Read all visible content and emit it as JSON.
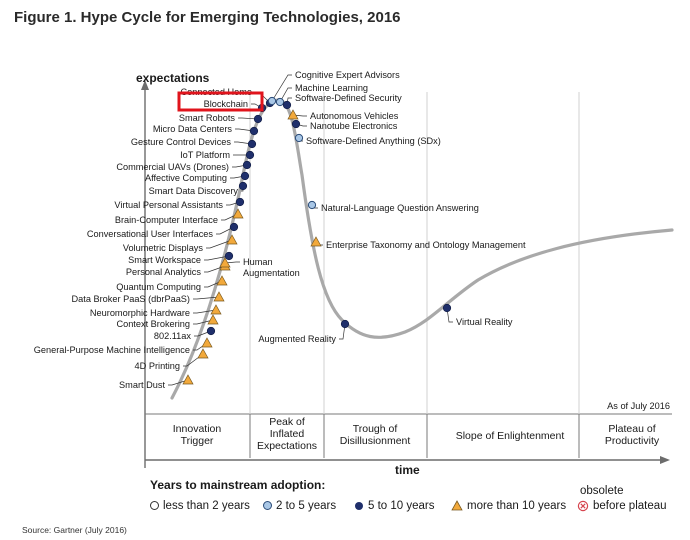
{
  "figure": {
    "title": "Figure 1. Hype Cycle for Emerging Technologies, 2016",
    "source": "Source: Gartner (July 2016)",
    "as_of": "As of July 2016",
    "y_axis_label": "expectations",
    "x_axis_label": "time"
  },
  "phases": [
    {
      "lines": [
        "Innovation",
        "Trigger"
      ]
    },
    {
      "lines": [
        "Peak of",
        "Inflated",
        "Expectations"
      ]
    },
    {
      "lines": [
        "Trough of",
        "Disillusionment"
      ]
    },
    {
      "lines": [
        "Slope of Enlightenment"
      ]
    },
    {
      "lines": [
        "Plateau of",
        "Productivity"
      ]
    }
  ],
  "legend": {
    "title": "Years to mainstream adoption:",
    "items": [
      {
        "label": "less than 2 years",
        "icon": "hollow-circle-icon"
      },
      {
        "label": "2 to 5 years",
        "icon": "light-blue-circle-icon"
      },
      {
        "label": "5 to 10 years",
        "icon": "dark-blue-circle-icon"
      },
      {
        "label": "more than 10 years",
        "icon": "orange-triangle-icon"
      },
      {
        "label": "before plateau",
        "icon": "red-x-circle-icon",
        "note": "obsolete"
      }
    ]
  },
  "colors": {
    "curve": "#a9a9a9",
    "dark_blue": "#1f2f6b",
    "light_blue": "#a9c7e6",
    "orange": "#f2a93b",
    "highlight": "#e0141c"
  },
  "highlighted_item": "Blockchain",
  "technologies": [
    {
      "name": "Smart Dust",
      "category": "more than 10 years"
    },
    {
      "name": "4D Printing",
      "category": "more than 10 years"
    },
    {
      "name": "General-Purpose Machine Intelligence",
      "category": "more than 10 years"
    },
    {
      "name": "802.11ax",
      "category": "5 to 10 years"
    },
    {
      "name": "Context Brokering",
      "category": "more than 10 years"
    },
    {
      "name": "Neuromorphic Hardware",
      "category": "more than 10 years"
    },
    {
      "name": "Data Broker PaaS (dbrPaaS)",
      "category": "more than 10 years"
    },
    {
      "name": "Quantum Computing",
      "category": "more than 10 years"
    },
    {
      "name": "Personal Analytics",
      "category": "more than 10 years"
    },
    {
      "name": "Smart Workspace",
      "category": "5 to 10 years"
    },
    {
      "name": "Volumetric Displays",
      "category": "more than 10 years"
    },
    {
      "name": "Conversational User Interfaces",
      "category": "5 to 10 years"
    },
    {
      "name": "Brain-Computer Interface",
      "category": "more than 10 years"
    },
    {
      "name": "Virtual Personal Assistants",
      "category": "5 to 10 years"
    },
    {
      "name": "Smart Data Discovery",
      "category": "5 to 10 years"
    },
    {
      "name": "Affective Computing",
      "category": "5 to 10 years"
    },
    {
      "name": "Commercial UAVs (Drones)",
      "category": "5 to 10 years"
    },
    {
      "name": "IoT Platform",
      "category": "5 to 10 years"
    },
    {
      "name": "Gesture Control Devices",
      "category": "5 to 10 years"
    },
    {
      "name": "Micro Data Centers",
      "category": "5 to 10 years"
    },
    {
      "name": "Smart Robots",
      "category": "5 to 10 years"
    },
    {
      "name": "Blockchain",
      "category": "5 to 10 years"
    },
    {
      "name": "Connected Home",
      "category": "5 to 10 years"
    },
    {
      "name": "Human Augmentation",
      "category": "more than 10 years"
    },
    {
      "name": "Cognitive Expert Advisors",
      "category": "2 to 5 years"
    },
    {
      "name": "Machine Learning",
      "category": "2 to 5 years"
    },
    {
      "name": "Software-Defined Security",
      "category": "5 to 10 years"
    },
    {
      "name": "Autonomous Vehicles",
      "category": "more than 10 years"
    },
    {
      "name": "Nanotube Electronics",
      "category": "5 to 10 years"
    },
    {
      "name": "Software-Defined Anything (SDx)",
      "category": "2 to 5 years"
    },
    {
      "name": "Natural-Language Question Answering",
      "category": "2 to 5 years"
    },
    {
      "name": "Enterprise Taxonomy and Ontology Management",
      "category": "more than 10 years"
    },
    {
      "name": "Augmented Reality",
      "category": "5 to 10 years"
    },
    {
      "name": "Virtual Reality",
      "category": "5 to 10 years"
    }
  ]
}
